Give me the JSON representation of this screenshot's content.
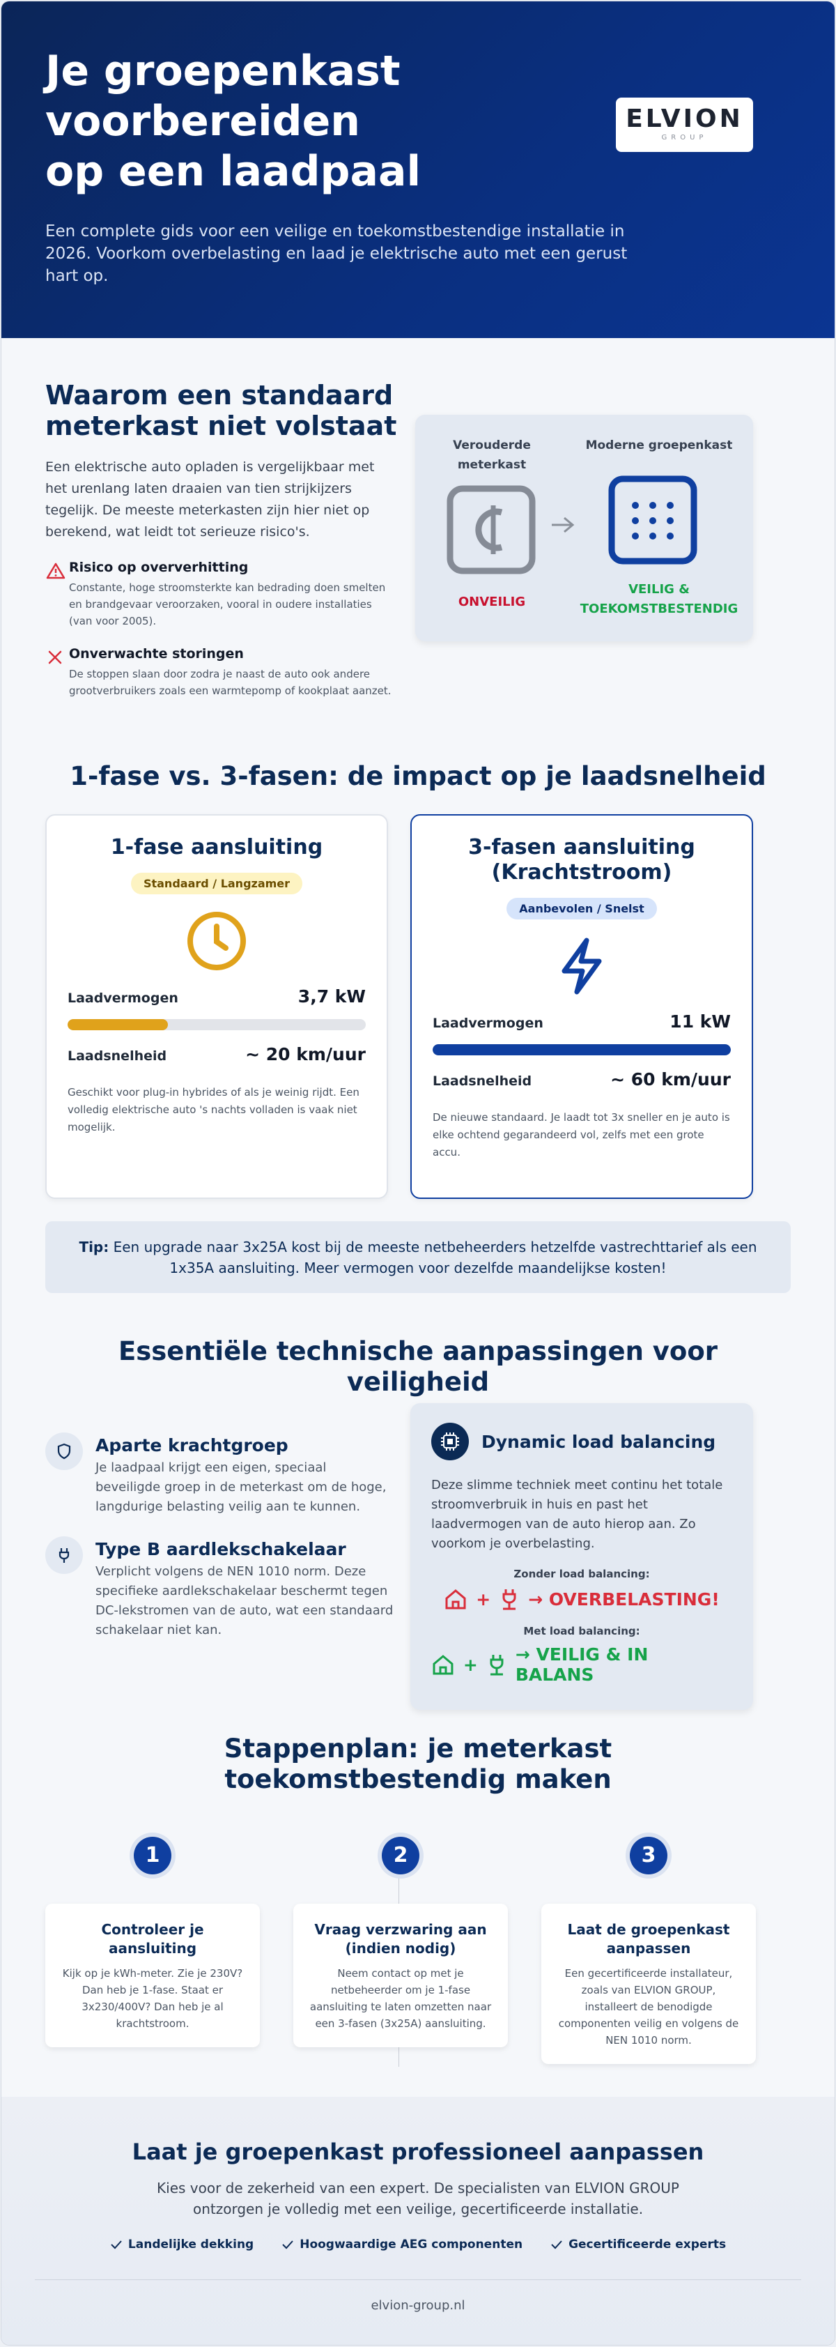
{
  "header": {
    "title_lines": [
      "Je groepenkast",
      "voorbereiden",
      "op een laadpaal"
    ],
    "subtitle": "Een complete gids voor een veilige en toekomstbestendige installatie in 2026. Voorkom overbelasting en laad je elektrische auto met een gerust hart op.",
    "logo": {
      "name": "ELVION",
      "sub": "GROUP"
    }
  },
  "why": {
    "title_lines": [
      "Waarom een standaard",
      "meterkast niet volstaat"
    ],
    "intro": "Een elektrische auto opladen is vergelijkbaar met het urenlang laten draaien van tien strijkijzers tegelijk. De meeste meterkasten zijn hier niet op berekend, wat leidt tot serieuze risico's.",
    "risks": [
      {
        "title": "Risico op oververhitting",
        "text": "Constante, hoge stroomsterkte kan bedrading doen smelten en brandgevaar veroorzaken, vooral in oudere installaties (van voor 2005)."
      },
      {
        "title": "Onverwachte storingen",
        "text": "De stoppen slaan door zodra je naast de auto ook andere grootverbruikers zoals een warmtepomp of kookplaat aanzet."
      }
    ],
    "compare": {
      "old_label": "Verouderde meterkast",
      "old_status": "ONVEILIG",
      "new_label": "Moderne groepenkast",
      "new_status": "VEILIG & TOEKOMSTBESTENDIG"
    }
  },
  "phase": {
    "title": "1-fase vs. 3-fasen: de impact op je laadsnelheid",
    "cards": [
      {
        "title": "1-fase aansluiting",
        "badge": "Standaard / Langzamer",
        "power_label": "Laadvermogen",
        "power": "3,7 kW",
        "speed_label": "Laadsnelheid",
        "speed": "~ 20 km/uur",
        "text": "Geschikt voor plug-in hybrides of als je weinig rijdt. Een volledig elektrische auto 's nachts volladen is vaak niet mogelijk."
      },
      {
        "title": "3-fasen aansluiting (Krachtstroom)",
        "badge": "Aanbevolen / Snelst",
        "power_label": "Laadvermogen",
        "power": "11 kW",
        "speed_label": "Laadsnelheid",
        "speed": "~ 60 km/uur",
        "text": "De nieuwe standaard. Je laadt tot 3x sneller en je auto is elke ochtend gegarandeerd vol, zelfs met een grote accu."
      }
    ],
    "tip": {
      "label": "Tip:",
      "text": "Een upgrade naar 3x25A kost bij de meeste netbeheerders hetzelfde vastrechttarief als een 1x35A aansluiting. Meer vermogen voor dezelfde maandelijkse kosten!"
    }
  },
  "tech": {
    "title": "Essentiële technische aanpassingen voor veiligheid",
    "items": [
      {
        "title": "Aparte krachtgroep",
        "text": "Je laadpaal krijgt een eigen, speciaal beveiligde groep in de meterkast om de hoge, langdurige belasting veilig aan te kunnen."
      },
      {
        "title": "Type B aardlekschakelaar",
        "text": "Verplicht volgens de NEN 1010 norm. Deze specifieke aardlekschakelaar beschermt tegen DC-lekstromen van de auto, wat een standaard schakelaar niet kan."
      }
    ],
    "dlb": {
      "title": "Dynamic load balancing",
      "text": "Deze slimme techniek meet continu het totale stroomverbruik in huis en past het laadvermogen van de auto hierop aan. Zo voorkom je overbelasting.",
      "without_label": "Zonder load balancing:",
      "without_result": "→ OVERBELASTING!",
      "with_label": "Met load balancing:",
      "with_result": "→ VEILIG & IN BALANS"
    }
  },
  "steps": {
    "title": "Stappenplan: je meterkast toekomstbestendig maken",
    "items": [
      {
        "number": "1",
        "title": "Controleer je aansluiting",
        "text": "Kijk op je kWh-meter. Zie je 230V? Dan heb je 1-fase. Staat er 3x230/400V? Dan heb je al krachtstroom."
      },
      {
        "number": "2",
        "title": "Vraag verzwaring aan (indien nodig)",
        "text": "Neem contact op met je netbeheerder om je 1-fase aansluiting te laten omzetten naar een 3-fasen (3x25A) aansluiting."
      },
      {
        "number": "3",
        "title": "Laat de groepenkast aanpassen",
        "text": "Een gecertificeerde installateur, zoals van ELVION GROUP, installeert de benodigde componenten veilig en volgens de NEN 1010 norm."
      }
    ]
  },
  "footer": {
    "title": "Laat je groepenkast professioneel aanpassen",
    "text": "Kies voor de zekerheid van een expert. De specialisten van ELVION GROUP ontzorgen je volledig met een veilige, gecertificeerde installatie.",
    "features": [
      "Landelijke dekking",
      "Hoogwaardige AEG componenten",
      "Gecertificeerde experts"
    ],
    "url": "elvion-group.nl"
  }
}
